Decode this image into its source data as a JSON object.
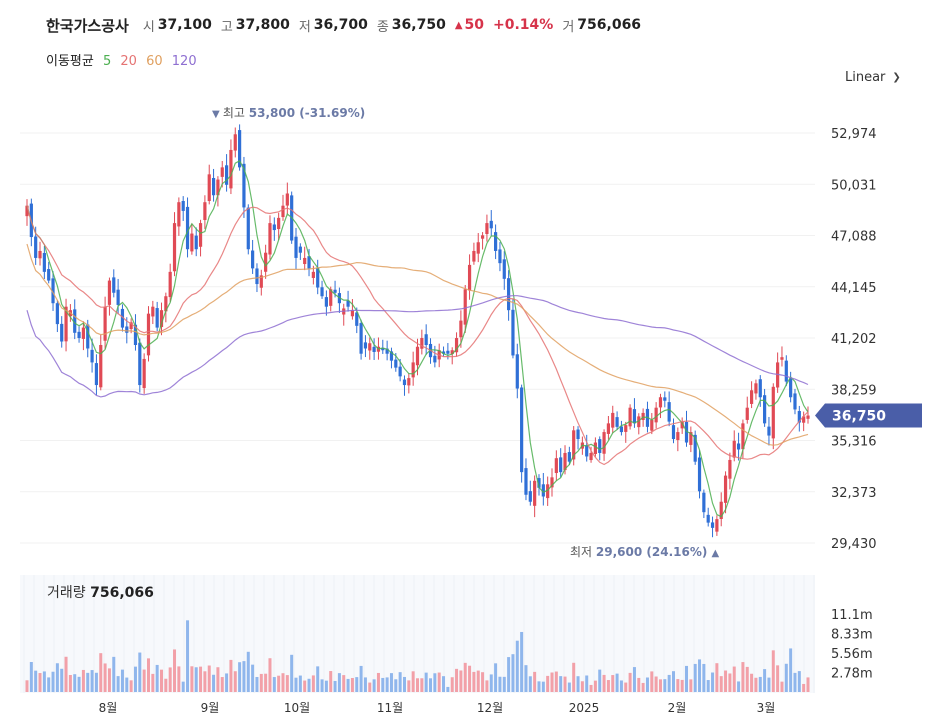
{
  "header": {
    "name": "한국가스공사",
    "open_label": "시",
    "open": "37,100",
    "high_label": "고",
    "high": "37,800",
    "low_label": "저",
    "low": "36,700",
    "close_label": "종",
    "close": "36,750",
    "change_arrow": "▲",
    "change": "50",
    "change_pct": "+0.14%",
    "volume_label": "거",
    "volume": "756,066"
  },
  "moving_average": {
    "label": "이동평균",
    "periods": [
      {
        "value": "5",
        "color": "#4caf50"
      },
      {
        "value": "20",
        "color": "#e57373"
      },
      {
        "value": "60",
        "color": "#e0a060"
      },
      {
        "value": "120",
        "color": "#8e6fd1"
      }
    ]
  },
  "scale_selector": {
    "label": "Linear",
    "icon": "chevron-down-icon"
  },
  "chart_data": {
    "type": "candlestick",
    "y_ticks": [
      52974,
      50031,
      47088,
      44145,
      41202,
      38259,
      35316,
      32373,
      29430
    ],
    "y_tick_labels": [
      "52,974",
      "50,031",
      "47,088",
      "44,145",
      "41,202",
      "38,259",
      "35,316",
      "32,373",
      "29,430"
    ],
    "x_labels": [
      "8월",
      "9월",
      "10월",
      "11월",
      "12월",
      "2025",
      "2월",
      "3월"
    ],
    "current_price": {
      "value": 36750,
      "label": "36,750",
      "color": "#4a5ea8"
    },
    "max_annotation": {
      "arrow": "▼",
      "label": "최고",
      "value": "53,800",
      "pct": "(-31.69%)"
    },
    "min_annotation": {
      "arrow": "▲",
      "label": "최저",
      "value": "29,600",
      "pct": "(24.16%)"
    },
    "up_color": "#e04a55",
    "down_color": "#2f6fd6",
    "closes": [
      48800,
      47000,
      45800,
      46200,
      45000,
      44500,
      43200,
      42000,
      41000,
      43000,
      42800,
      41500,
      41200,
      41800,
      40600,
      39800,
      38500,
      40800,
      43000,
      44500,
      43800,
      43100,
      41800,
      41500,
      42100,
      40800,
      38500,
      40000,
      42600,
      43000,
      41800,
      42800,
      43600,
      45000,
      47800,
      49000,
      48500,
      46300,
      47200,
      46300,
      47800,
      49000,
      50600,
      49400,
      50300,
      51000,
      50000,
      52000,
      52900,
      51000,
      48700,
      46300,
      45200,
      44300,
      44800,
      46100,
      47800,
      47400,
      48100,
      48800,
      49500,
      46800,
      45800,
      46100,
      45800,
      45200,
      45000,
      44100,
      43600,
      43000,
      44000,
      43800,
      43200,
      42900,
      43000,
      42800,
      41900,
      40300,
      40600,
      40900,
      40400,
      40700,
      40500,
      40300,
      39900,
      39500,
      39000,
      38500,
      38900,
      39800,
      40700,
      41200,
      40800,
      40100,
      39800,
      40500,
      40300,
      40300,
      40500,
      41200,
      42200,
      44000,
      45400,
      46200,
      46700,
      47100,
      47800,
      47500,
      46200,
      45500,
      44600,
      42800,
      40200,
      38300,
      33500,
      32200,
      31800,
      33000,
      32600,
      32100,
      32800,
      33200,
      34300,
      33500,
      34600,
      34100,
      35900,
      35400,
      35200,
      34400,
      34600,
      35200,
      34600,
      35800,
      36300,
      36900,
      36100,
      35800,
      36200,
      37200,
      36300,
      36700,
      36900,
      36100,
      36500,
      37200,
      37800,
      37600,
      36400,
      35400,
      35800,
      36400,
      35200,
      35800,
      34100,
      32400,
      31200,
      30600,
      30300,
      30800,
      31800,
      33300,
      34200,
      35300,
      34800,
      36300,
      37200,
      38200,
      38600,
      37800,
      36300,
      35600,
      38400,
      39800,
      40100,
      38700,
      37800,
      37100,
      36350,
      36700,
      36750
    ],
    "ma_series": [
      {
        "period": "5",
        "color": "#4caf50"
      },
      {
        "period": "20",
        "color": "#e57373"
      },
      {
        "period": "60",
        "color": "#e0a060"
      },
      {
        "period": "120",
        "color": "#8e6fd1"
      }
    ],
    "volume": {
      "label": "거래량",
      "value": "756,066",
      "ticks": [
        "11.1m",
        "8.33m",
        "5.56m",
        "2.78m"
      ],
      "tick_values": [
        11.1,
        8.33,
        5.56,
        2.78
      ]
    }
  }
}
